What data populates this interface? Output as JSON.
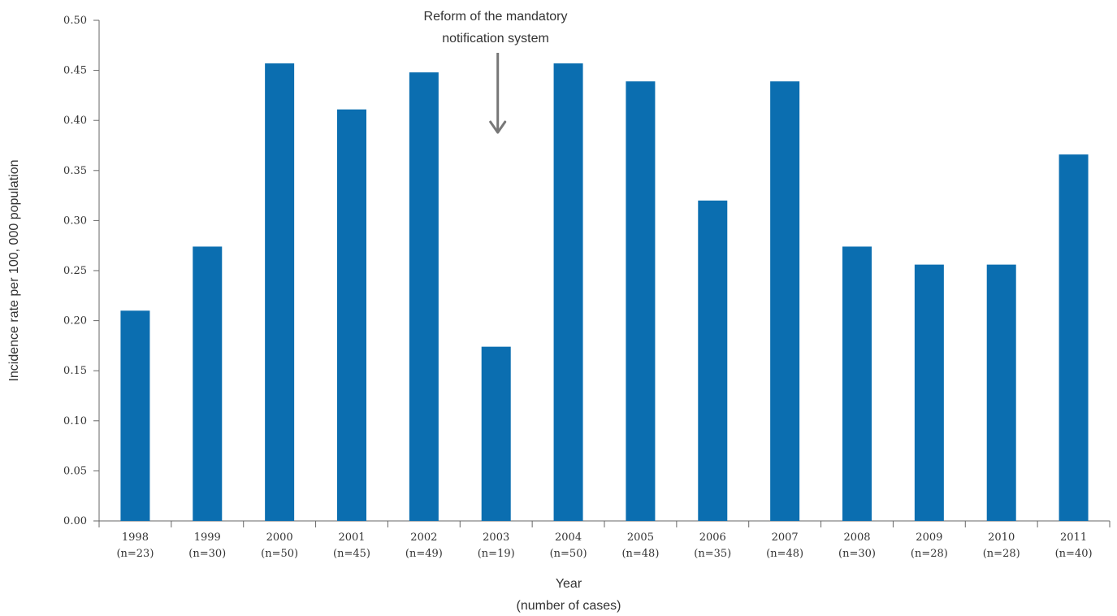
{
  "chart_data": {
    "type": "bar",
    "categories": [
      "1998",
      "1999",
      "2000",
      "2001",
      "2002",
      "2003",
      "2004",
      "2005",
      "2006",
      "2007",
      "2008",
      "2009",
      "2010",
      "2011"
    ],
    "case_counts": [
      "(n=23)",
      "(n=30)",
      "(n=50)",
      "(n=45)",
      "(n=49)",
      "(n=19)",
      "(n=50)",
      "(n=48)",
      "(n=35)",
      "(n=48)",
      "(n=30)",
      "(n=28)",
      "(n=28)",
      "(n=40)"
    ],
    "values": [
      0.21,
      0.274,
      0.457,
      0.411,
      0.448,
      0.174,
      0.457,
      0.439,
      0.32,
      0.439,
      0.274,
      0.256,
      0.256,
      0.366
    ],
    "title": "",
    "xlabel": "Year",
    "xlabel_sub": "(number of cases)",
    "ylabel": "Incidence rate per 100, 000 population",
    "ylim": [
      0,
      0.5
    ],
    "yticks": [
      "0.00",
      "0.05",
      "0.10",
      "0.15",
      "0.20",
      "0.25",
      "0.30",
      "0.35",
      "0.40",
      "0.45",
      "0.50"
    ],
    "grid": false,
    "bar_color": "#0b6eb0",
    "annotation": {
      "lines": [
        "Reform of the mandatory",
        "notification system"
      ],
      "category": "2003",
      "arrow_color": "#777777"
    }
  }
}
